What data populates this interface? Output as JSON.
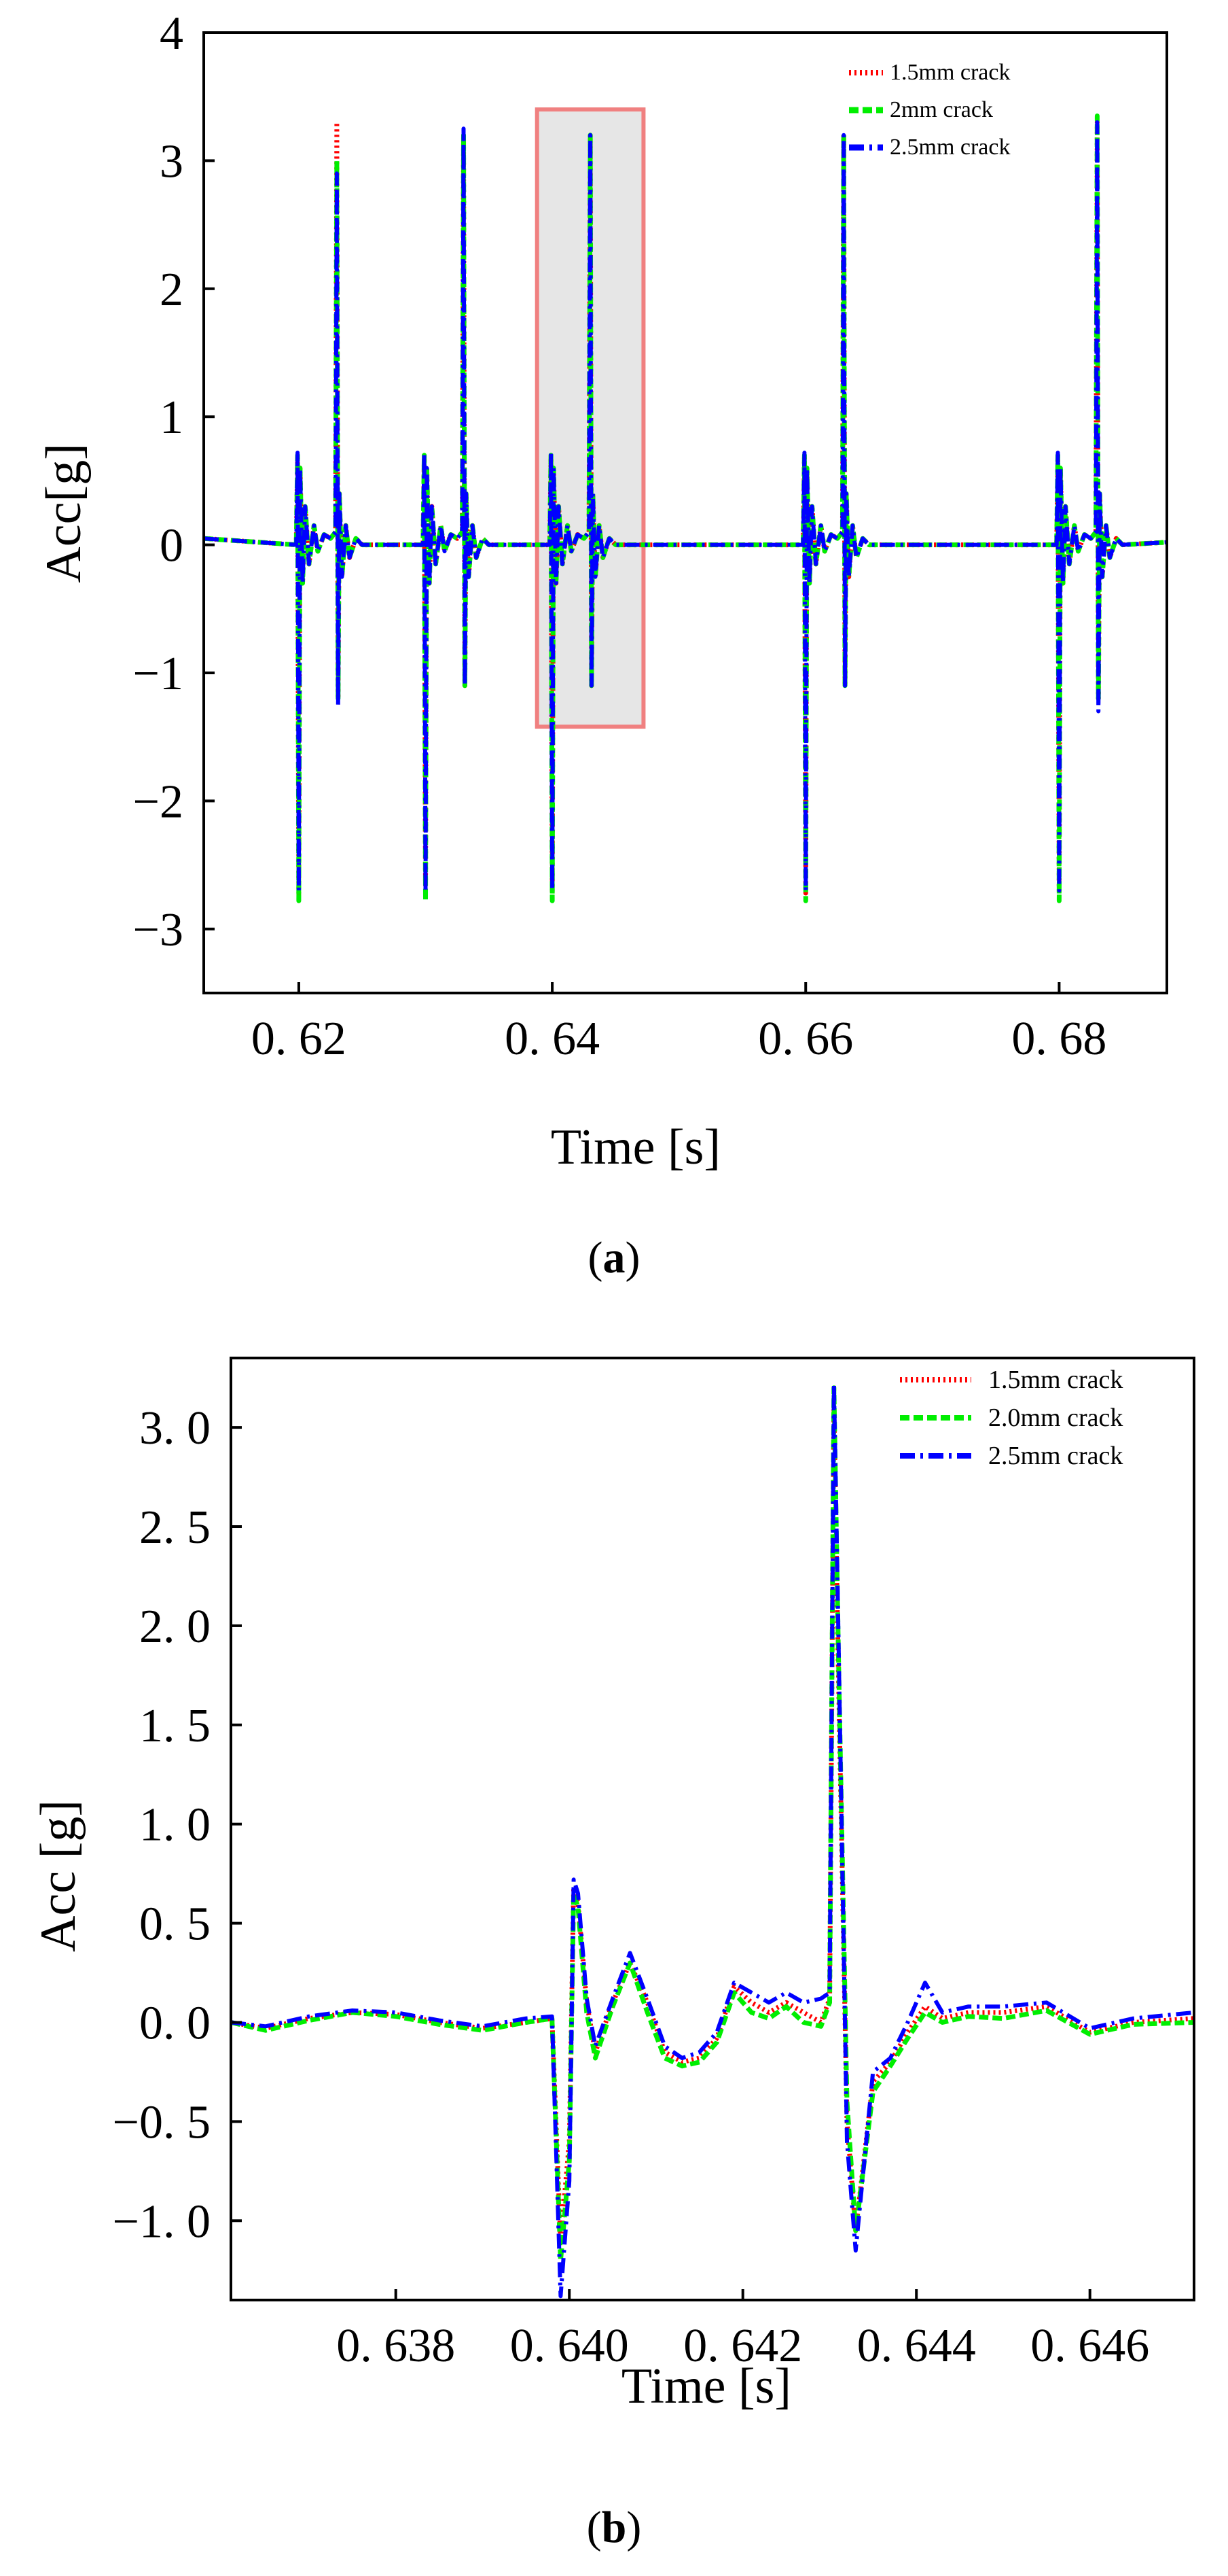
{
  "chart_data": [
    {
      "type": "line",
      "panel": "(a)",
      "panel_letter": "a",
      "xlabel": "Time [s]",
      "ylabel": "Acc[g]",
      "xlim": [
        0.6125,
        0.6885
      ],
      "ylim": [
        -3.5,
        4.0
      ],
      "x_ticks": [
        0.62,
        0.64,
        0.66,
        0.68
      ],
      "x_tick_labels": [
        "0. 62",
        "0. 64",
        "0. 66",
        "0. 68"
      ],
      "y_ticks": [
        -3,
        -2,
        -1,
        0,
        1,
        2,
        3,
        4
      ],
      "y_tick_labels": [
        "−3",
        "−2",
        "−1",
        "0",
        "1",
        "2",
        "3",
        "4"
      ],
      "highlight_region": {
        "x": [
          0.6388,
          0.6472
        ],
        "y": [
          -1.42,
          3.4
        ]
      },
      "series": [
        {
          "name": "1.5mm crack",
          "color": "#ff0000",
          "style": "dotted",
          "x": [
            0.6125,
            0.6198,
            0.6199,
            0.62,
            0.6201,
            0.6203,
            0.6205,
            0.6208,
            0.6212,
            0.6215,
            0.622,
            0.6225,
            0.6229,
            0.623,
            0.6231,
            0.6232,
            0.6234,
            0.6237,
            0.624,
            0.6245,
            0.625,
            0.6298,
            0.6299,
            0.63,
            0.6301,
            0.6303,
            0.6305,
            0.6308,
            0.6312,
            0.6315,
            0.632,
            0.6325,
            0.6329,
            0.633,
            0.6331,
            0.6332,
            0.6334,
            0.6337,
            0.634,
            0.6345,
            0.635,
            0.6398,
            0.6399,
            0.64,
            0.6401,
            0.6403,
            0.6405,
            0.6408,
            0.6412,
            0.6415,
            0.642,
            0.6425,
            0.6429,
            0.643,
            0.6431,
            0.6432,
            0.6434,
            0.6437,
            0.644,
            0.6445,
            0.645,
            0.6598,
            0.6599,
            0.66,
            0.6601,
            0.6603,
            0.6605,
            0.6608,
            0.6612,
            0.6615,
            0.662,
            0.6625,
            0.6629,
            0.663,
            0.6631,
            0.6632,
            0.6634,
            0.6637,
            0.664,
            0.6645,
            0.665,
            0.6798,
            0.6799,
            0.68,
            0.6801,
            0.6803,
            0.6805,
            0.6808,
            0.6812,
            0.6815,
            0.682,
            0.6825,
            0.6829,
            0.683,
            0.6831,
            0.6832,
            0.6834,
            0.6837,
            0.684,
            0.6845,
            0.685,
            0.6885
          ],
          "y": [
            0.05,
            0.0,
            0.68,
            -2.72,
            0.6,
            -0.3,
            0.3,
            -0.15,
            0.15,
            -0.05,
            0.08,
            0.05,
            0.1,
            3.3,
            -1.2,
            0.4,
            -0.25,
            0.15,
            -0.1,
            0.05,
            0.0,
            0.0,
            0.68,
            -2.72,
            0.6,
            -0.3,
            0.3,
            -0.15,
            0.15,
            -0.05,
            0.08,
            0.05,
            0.1,
            3.2,
            -1.1,
            0.4,
            -0.25,
            0.15,
            -0.1,
            0.05,
            0.0,
            0.0,
            0.68,
            -2.72,
            0.6,
            -0.3,
            0.3,
            -0.15,
            0.15,
            -0.05,
            0.08,
            0.05,
            0.1,
            3.2,
            -1.1,
            0.4,
            -0.25,
            0.15,
            -0.1,
            0.05,
            0.0,
            0.0,
            0.68,
            -2.72,
            0.6,
            -0.3,
            0.3,
            -0.15,
            0.15,
            -0.05,
            0.08,
            0.05,
            0.1,
            3.2,
            -1.1,
            0.4,
            -0.25,
            0.15,
            -0.1,
            0.05,
            0.0,
            0.0,
            0.68,
            -2.72,
            0.6,
            -0.3,
            0.3,
            -0.15,
            0.15,
            -0.05,
            0.08,
            0.05,
            0.1,
            3.3,
            -1.2,
            0.4,
            -0.25,
            0.15,
            -0.1,
            0.05,
            0.0,
            0.02
          ]
        },
        {
          "name": "2mm crack",
          "color": "#00ee00",
          "style": "dashed",
          "x": [
            0.6125,
            0.6198,
            0.6199,
            0.62,
            0.6201,
            0.6203,
            0.6205,
            0.6208,
            0.6212,
            0.6215,
            0.622,
            0.6225,
            0.6229,
            0.623,
            0.6231,
            0.6232,
            0.6234,
            0.6237,
            0.624,
            0.6245,
            0.625,
            0.6298,
            0.6299,
            0.63,
            0.6301,
            0.6303,
            0.6305,
            0.6308,
            0.6312,
            0.6315,
            0.632,
            0.6325,
            0.6329,
            0.633,
            0.6331,
            0.6332,
            0.6334,
            0.6337,
            0.634,
            0.6345,
            0.635,
            0.6398,
            0.6399,
            0.64,
            0.6401,
            0.6403,
            0.6405,
            0.6408,
            0.6412,
            0.6415,
            0.642,
            0.6425,
            0.6429,
            0.643,
            0.6431,
            0.6432,
            0.6434,
            0.6437,
            0.644,
            0.6445,
            0.645,
            0.6598,
            0.6599,
            0.66,
            0.6601,
            0.6603,
            0.6605,
            0.6608,
            0.6612,
            0.6615,
            0.662,
            0.6625,
            0.6629,
            0.663,
            0.6631,
            0.6632,
            0.6634,
            0.6637,
            0.664,
            0.6645,
            0.665,
            0.6798,
            0.6799,
            0.68,
            0.6801,
            0.6803,
            0.6805,
            0.6808,
            0.6812,
            0.6815,
            0.682,
            0.6825,
            0.6829,
            0.683,
            0.6831,
            0.6832,
            0.6834,
            0.6837,
            0.684,
            0.6845,
            0.685,
            0.6885
          ],
          "y": [
            0.05,
            0.0,
            0.7,
            -2.78,
            0.6,
            -0.3,
            0.3,
            -0.15,
            0.15,
            -0.05,
            0.08,
            0.05,
            0.1,
            3.0,
            -1.2,
            0.4,
            -0.25,
            0.15,
            -0.1,
            0.05,
            0.0,
            0.0,
            0.7,
            -2.78,
            0.6,
            -0.3,
            0.3,
            -0.15,
            0.15,
            -0.05,
            0.08,
            0.05,
            0.1,
            3.2,
            -1.1,
            0.4,
            -0.25,
            0.15,
            -0.1,
            0.05,
            0.0,
            0.0,
            0.7,
            -2.78,
            0.6,
            -0.3,
            0.3,
            -0.15,
            0.15,
            -0.05,
            0.08,
            0.05,
            0.1,
            3.2,
            -1.1,
            0.4,
            -0.25,
            0.15,
            -0.1,
            0.05,
            0.0,
            0.0,
            0.7,
            -2.78,
            0.6,
            -0.3,
            0.3,
            -0.15,
            0.15,
            -0.05,
            0.08,
            0.05,
            0.1,
            3.2,
            -1.1,
            0.4,
            -0.25,
            0.15,
            -0.1,
            0.05,
            0.0,
            0.0,
            0.7,
            -2.78,
            0.6,
            -0.3,
            0.3,
            -0.15,
            0.15,
            -0.05,
            0.08,
            0.05,
            0.1,
            3.35,
            -1.2,
            0.4,
            -0.25,
            0.15,
            -0.1,
            0.05,
            0.0,
            0.02
          ]
        },
        {
          "name": "2.5mm crack",
          "color": "#0000ff",
          "style": "dashdot",
          "x": [
            0.6125,
            0.6198,
            0.6199,
            0.62,
            0.6201,
            0.6203,
            0.6205,
            0.6208,
            0.6212,
            0.6215,
            0.622,
            0.6225,
            0.6229,
            0.623,
            0.6231,
            0.6232,
            0.6234,
            0.6237,
            0.624,
            0.6245,
            0.625,
            0.6298,
            0.6299,
            0.63,
            0.6301,
            0.6303,
            0.6305,
            0.6308,
            0.6312,
            0.6315,
            0.632,
            0.6325,
            0.6329,
            0.633,
            0.6331,
            0.6332,
            0.6334,
            0.6337,
            0.634,
            0.6345,
            0.635,
            0.6398,
            0.6399,
            0.64,
            0.6401,
            0.6403,
            0.6405,
            0.6408,
            0.6412,
            0.6415,
            0.642,
            0.6425,
            0.6429,
            0.643,
            0.6431,
            0.6432,
            0.6434,
            0.6437,
            0.644,
            0.6445,
            0.645,
            0.6598,
            0.6599,
            0.66,
            0.6601,
            0.6603,
            0.6605,
            0.6608,
            0.6612,
            0.6615,
            0.662,
            0.6625,
            0.6629,
            0.663,
            0.6631,
            0.6632,
            0.6634,
            0.6637,
            0.664,
            0.6645,
            0.665,
            0.6798,
            0.6799,
            0.68,
            0.6801,
            0.6803,
            0.6805,
            0.6808,
            0.6812,
            0.6815,
            0.682,
            0.6825,
            0.6829,
            0.683,
            0.6831,
            0.6832,
            0.6834,
            0.6837,
            0.684,
            0.6845,
            0.685,
            0.6885
          ],
          "y": [
            0.05,
            0.0,
            0.72,
            -2.7,
            0.6,
            -0.3,
            0.3,
            -0.15,
            0.15,
            -0.05,
            0.08,
            0.05,
            0.1,
            2.9,
            -1.25,
            0.4,
            -0.25,
            0.15,
            -0.1,
            0.05,
            0.0,
            0.0,
            0.72,
            -2.7,
            0.6,
            -0.3,
            0.3,
            -0.15,
            0.15,
            -0.05,
            0.08,
            0.05,
            0.1,
            3.25,
            -1.1,
            0.4,
            -0.25,
            0.15,
            -0.1,
            0.05,
            0.0,
            0.0,
            0.72,
            -2.7,
            0.6,
            -0.3,
            0.3,
            -0.15,
            0.15,
            -0.05,
            0.08,
            0.05,
            0.1,
            3.2,
            -1.1,
            0.4,
            -0.25,
            0.15,
            -0.1,
            0.05,
            0.0,
            0.0,
            0.72,
            -2.7,
            0.6,
            -0.3,
            0.3,
            -0.15,
            0.15,
            -0.05,
            0.08,
            0.05,
            0.1,
            3.2,
            -1.1,
            0.4,
            -0.25,
            0.15,
            -0.1,
            0.05,
            0.0,
            0.0,
            0.72,
            -2.7,
            0.6,
            -0.3,
            0.3,
            -0.15,
            0.15,
            -0.05,
            0.08,
            0.05,
            0.1,
            3.3,
            -1.3,
            0.4,
            -0.25,
            0.15,
            -0.1,
            0.05,
            0.0,
            0.02
          ]
        }
      ]
    },
    {
      "type": "line",
      "panel": "(b)",
      "panel_letter": "b",
      "xlabel": "Time [s]",
      "ylabel": "Acc [g]",
      "xlim": [
        0.6361,
        0.6472
      ],
      "ylim": [
        -1.4,
        3.35
      ],
      "x_ticks": [
        0.638,
        0.64,
        0.642,
        0.644,
        0.646
      ],
      "x_tick_labels": [
        "0. 638",
        "0. 640",
        "0. 642",
        "0. 644",
        "0. 646"
      ],
      "y_ticks": [
        -1.0,
        -0.5,
        0.0,
        0.5,
        1.0,
        1.5,
        2.0,
        2.5,
        3.0
      ],
      "y_tick_labels": [
        "−1. 0",
        "−0. 5",
        "0. 0",
        "0. 5",
        "1. 0",
        "1. 5",
        "2. 0",
        "2. 5",
        "3. 0"
      ],
      "series": [
        {
          "name": "1.5mm crack",
          "color": "#ff0000",
          "style": "dotted",
          "x": [
            0.6361,
            0.6365,
            0.637,
            0.6375,
            0.638,
            0.6385,
            0.639,
            0.6395,
            0.6398,
            0.6399,
            0.64,
            0.64005,
            0.6401,
            0.6402,
            0.6403,
            0.6405,
            0.6407,
            0.6409,
            0.6411,
            0.6413,
            0.6415,
            0.6417,
            0.6419,
            0.6421,
            0.6423,
            0.6425,
            0.6427,
            0.6429,
            0.643,
            0.64305,
            0.6431,
            0.6432,
            0.6433,
            0.6435,
            0.6437,
            0.6439,
            0.6441,
            0.6443,
            0.6446,
            0.645,
            0.6455,
            0.646,
            0.6465,
            0.6472
          ],
          "y": [
            0.0,
            -0.03,
            0.02,
            0.05,
            0.04,
            0.0,
            -0.03,
            0.0,
            0.02,
            -1.1,
            -0.6,
            0.68,
            0.6,
            0.1,
            -0.15,
            0.1,
            0.3,
            0.1,
            -0.15,
            -0.2,
            -0.18,
            -0.08,
            0.18,
            0.1,
            0.05,
            0.1,
            0.05,
            0.0,
            0.12,
            3.1,
            1.8,
            -0.5,
            -1.05,
            -0.3,
            -0.2,
            -0.05,
            0.08,
            0.02,
            0.05,
            0.05,
            0.08,
            -0.05,
            0.0,
            0.02
          ]
        },
        {
          "name": "2.0mm crack",
          "color": "#00ee00",
          "style": "dashed",
          "x": [
            0.6361,
            0.6365,
            0.637,
            0.6375,
            0.638,
            0.6385,
            0.639,
            0.6395,
            0.6398,
            0.6399,
            0.64,
            0.64005,
            0.6401,
            0.6402,
            0.6403,
            0.6405,
            0.6407,
            0.6409,
            0.6411,
            0.6413,
            0.6415,
            0.6417,
            0.6419,
            0.6421,
            0.6423,
            0.6425,
            0.6427,
            0.6429,
            0.643,
            0.64305,
            0.6431,
            0.6432,
            0.6433,
            0.6435,
            0.6437,
            0.6439,
            0.6441,
            0.6443,
            0.6446,
            0.645,
            0.6455,
            0.646,
            0.6465,
            0.6472
          ],
          "y": [
            0.0,
            -0.04,
            0.01,
            0.05,
            0.03,
            -0.01,
            -0.04,
            0.0,
            0.02,
            -1.2,
            -0.7,
            0.65,
            0.58,
            0.05,
            -0.18,
            0.08,
            0.3,
            0.05,
            -0.18,
            -0.22,
            -0.2,
            -0.1,
            0.15,
            0.05,
            0.02,
            0.08,
            0.0,
            -0.02,
            0.1,
            3.2,
            1.9,
            -0.4,
            -1.05,
            -0.35,
            -0.22,
            -0.08,
            0.05,
            0.0,
            0.03,
            0.02,
            0.06,
            -0.06,
            -0.01,
            0.0
          ]
        },
        {
          "name": "2.5mm crack",
          "color": "#0000ff",
          "style": "dashdot",
          "x": [
            0.6361,
            0.6365,
            0.637,
            0.6375,
            0.638,
            0.6385,
            0.639,
            0.6395,
            0.6398,
            0.6399,
            0.64,
            0.64005,
            0.6401,
            0.6402,
            0.6403,
            0.6405,
            0.6407,
            0.6409,
            0.6411,
            0.6413,
            0.6415,
            0.6417,
            0.6419,
            0.6421,
            0.6423,
            0.6425,
            0.6427,
            0.6429,
            0.643,
            0.64305,
            0.6431,
            0.6432,
            0.6433,
            0.6435,
            0.6437,
            0.6439,
            0.6441,
            0.6443,
            0.6446,
            0.645,
            0.6455,
            0.646,
            0.6465,
            0.6472
          ],
          "y": [
            0.0,
            -0.02,
            0.03,
            0.06,
            0.05,
            0.01,
            -0.02,
            0.02,
            0.03,
            -1.38,
            -0.8,
            0.72,
            0.65,
            0.12,
            -0.12,
            0.12,
            0.35,
            0.12,
            -0.12,
            -0.18,
            -0.15,
            -0.05,
            0.2,
            0.15,
            0.1,
            0.15,
            0.1,
            0.12,
            0.15,
            3.22,
            2.0,
            -0.6,
            -1.15,
            -0.25,
            -0.18,
            0.0,
            0.2,
            0.05,
            0.08,
            0.08,
            0.1,
            -0.03,
            0.02,
            0.05
          ]
        }
      ]
    }
  ]
}
